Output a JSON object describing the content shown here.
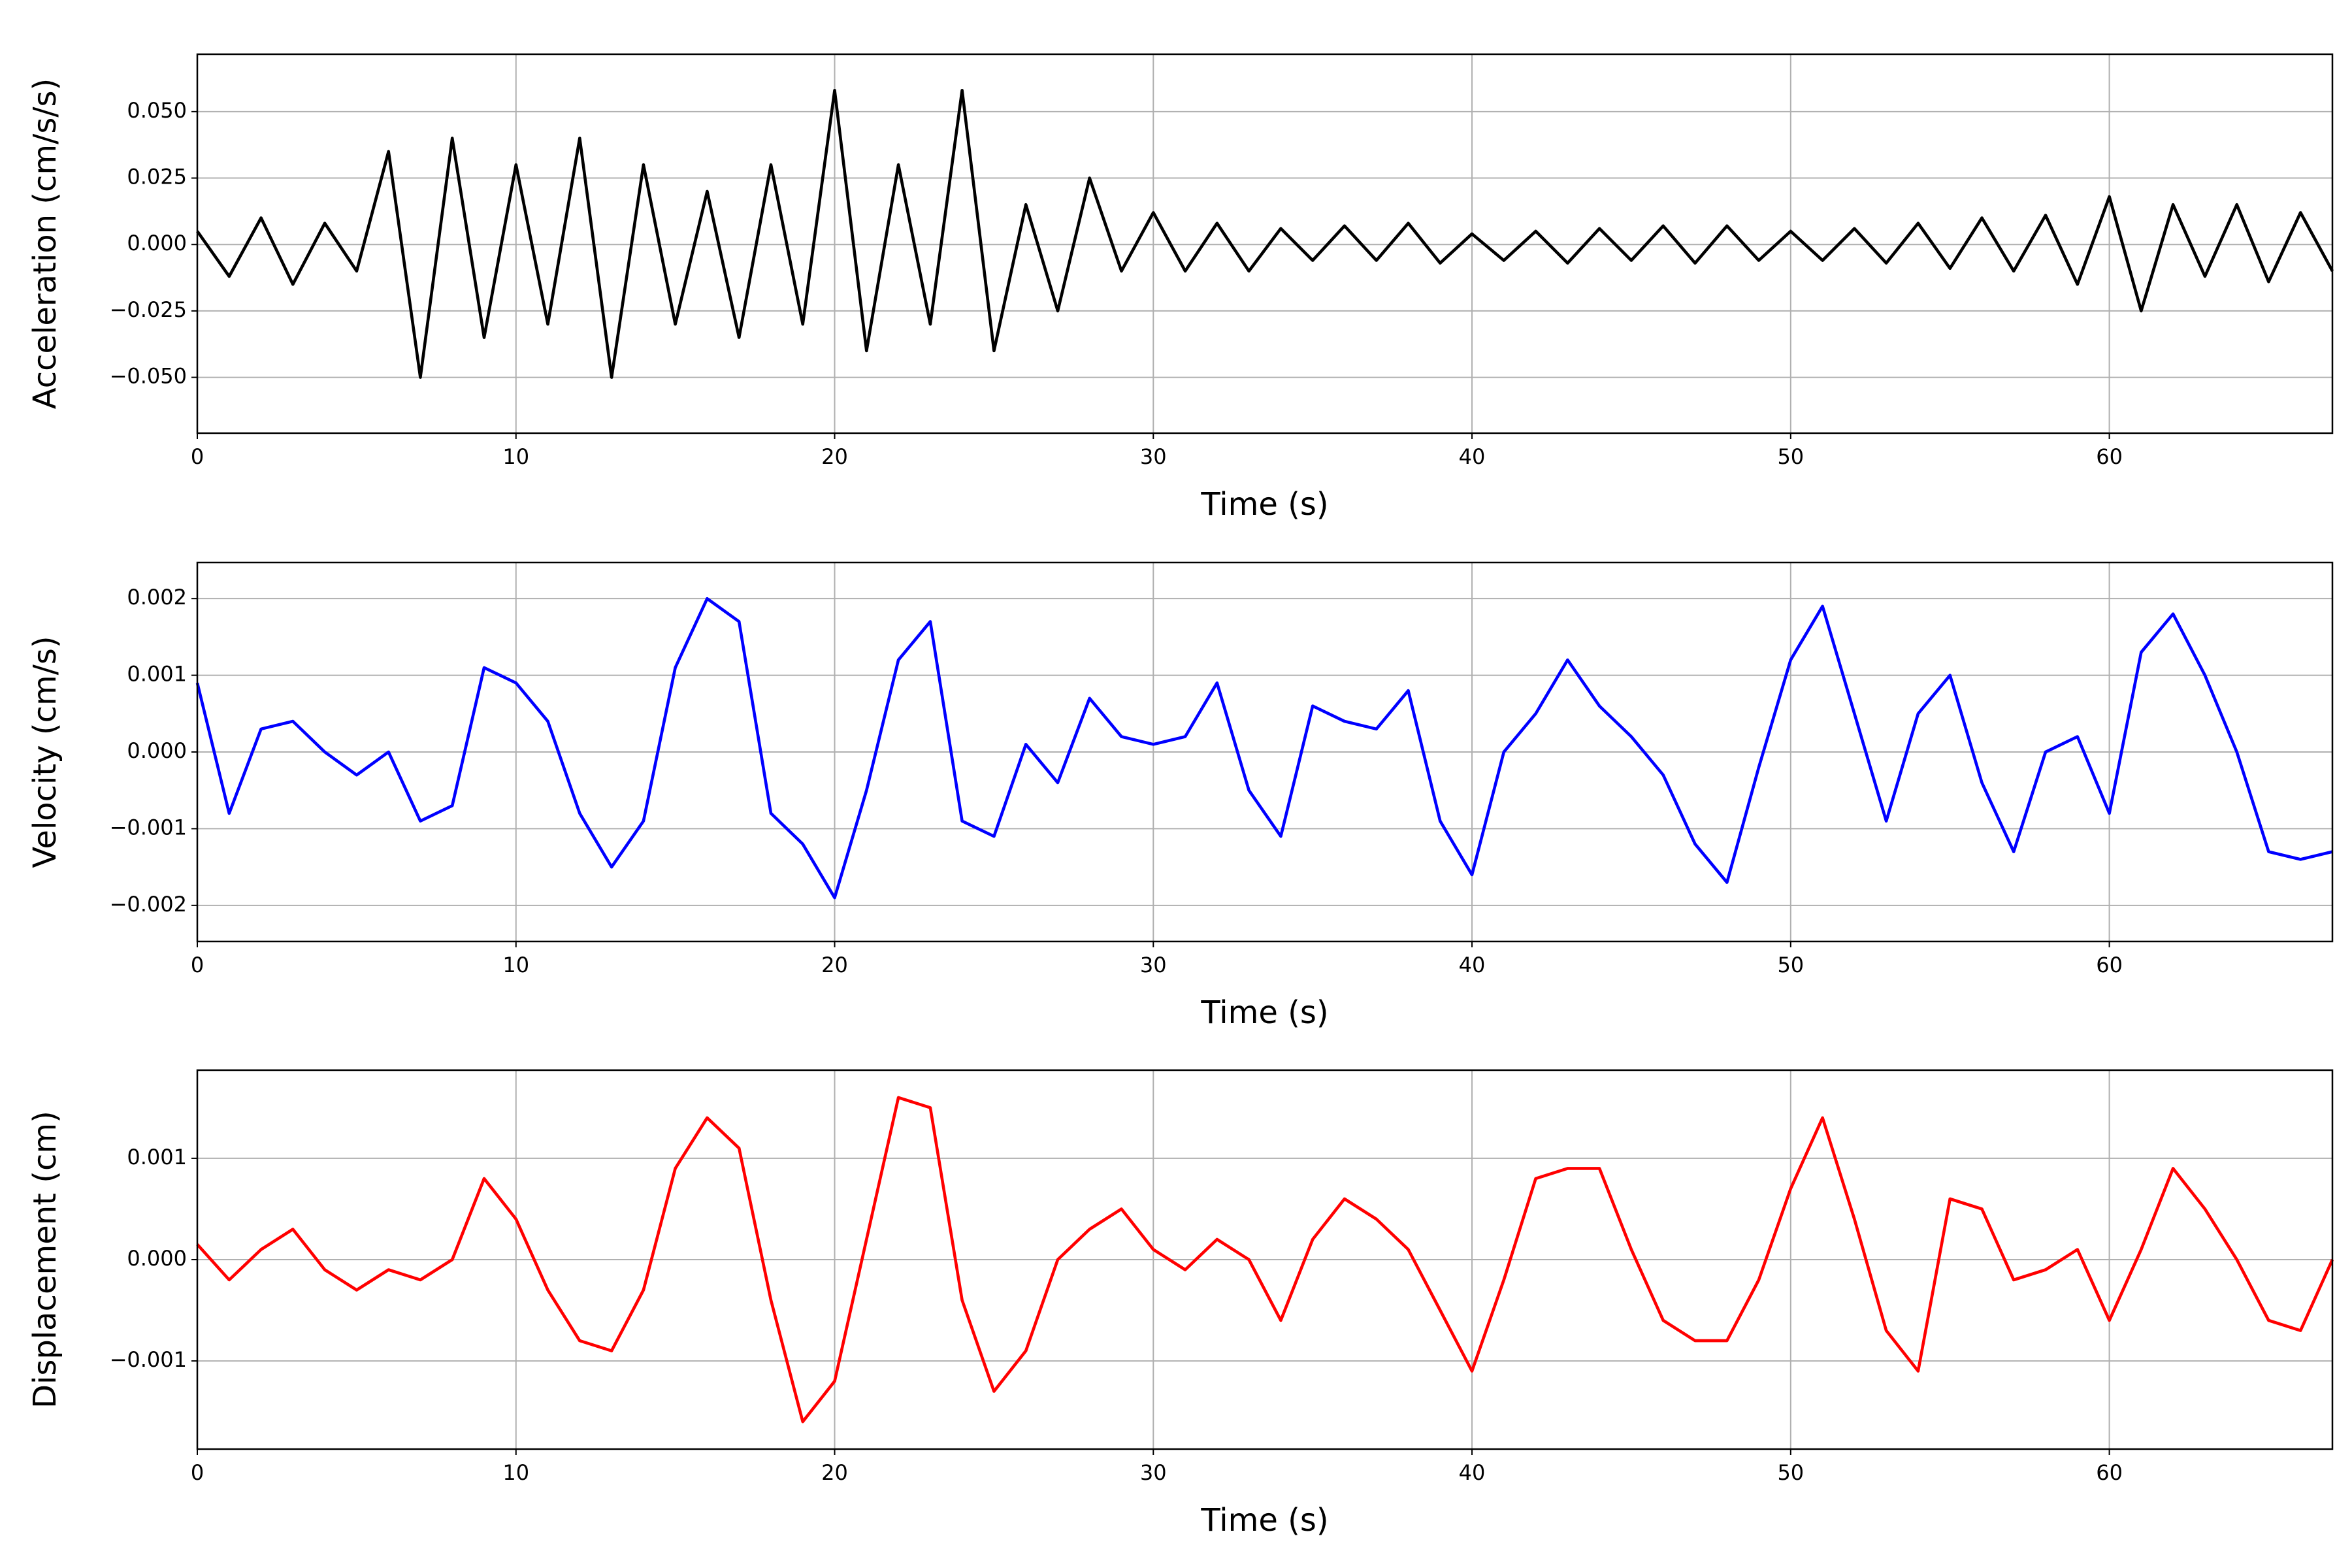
{
  "chart_data": [
    {
      "type": "line",
      "xlabel": "Time (s)",
      "ylabel": "Acceleration (cm/s/s)",
      "grid": true,
      "color": "#000000",
      "xlim": [
        0,
        67
      ],
      "xticks": [
        0,
        10,
        20,
        30,
        40,
        50,
        60
      ],
      "ylim": [
        -0.071,
        0.0716
      ],
      "yticks": [
        {
          "value": -0.05,
          "label": "−0.050"
        },
        {
          "value": -0.025,
          "label": "−0.025"
        },
        {
          "value": 0,
          "label": "0.000"
        },
        {
          "value": 0.025,
          "label": "0.025"
        },
        {
          "value": 0.05,
          "label": "0.050"
        }
      ],
      "x": [
        0,
        1,
        2,
        3,
        4,
        5,
        6,
        7,
        8,
        9,
        10,
        11,
        12,
        13,
        14,
        15,
        16,
        17,
        18,
        19,
        20,
        21,
        22,
        23,
        24,
        25,
        26,
        27,
        28,
        29,
        30,
        31,
        32,
        33,
        34,
        35,
        36,
        37,
        38,
        39,
        40,
        41,
        42,
        43,
        44,
        45,
        46,
        47,
        48,
        49,
        50,
        51,
        52,
        53,
        54,
        55,
        56,
        57,
        58,
        59,
        60,
        61,
        62,
        63,
        64,
        65,
        66,
        67
      ],
      "values": [
        0.005,
        -0.012,
        0.01,
        -0.015,
        0.008,
        -0.01,
        0.035,
        -0.05,
        0.04,
        -0.035,
        0.03,
        -0.03,
        0.04,
        -0.05,
        0.03,
        -0.03,
        0.02,
        -0.035,
        0.03,
        -0.03,
        0.058,
        -0.04,
        0.03,
        -0.03,
        0.058,
        -0.04,
        0.015,
        -0.025,
        0.025,
        -0.01,
        0.012,
        -0.01,
        0.008,
        -0.01,
        0.006,
        -0.006,
        0.007,
        -0.006,
        0.008,
        -0.007,
        0.004,
        -0.006,
        0.005,
        -0.007,
        0.006,
        -0.006,
        0.007,
        -0.007,
        0.007,
        -0.006,
        0.005,
        -0.006,
        0.006,
        -0.007,
        0.008,
        -0.009,
        0.01,
        -0.01,
        0.011,
        -0.015,
        0.018,
        -0.025,
        0.015,
        -0.012,
        0.015,
        -0.014,
        0.012,
        -0.01
      ]
    },
    {
      "type": "line",
      "xlabel": "Time (s)",
      "ylabel": "Velocity (cm/s)",
      "grid": true,
      "color": "#0000ff",
      "xlim": [
        0,
        67
      ],
      "xticks": [
        0,
        10,
        20,
        30,
        40,
        50,
        60
      ],
      "ylim": [
        -0.00247,
        0.00247
      ],
      "yticks": [
        {
          "value": -0.002,
          "label": "−0.002"
        },
        {
          "value": -0.001,
          "label": "−0.001"
        },
        {
          "value": 0,
          "label": "0.000"
        },
        0.001,
        0.002
      ],
      "x": [
        0,
        1,
        2,
        3,
        4,
        5,
        6,
        7,
        8,
        9,
        10,
        11,
        12,
        13,
        14,
        15,
        16,
        17,
        18,
        19,
        20,
        21,
        22,
        23,
        24,
        25,
        26,
        27,
        28,
        29,
        30,
        31,
        32,
        33,
        34,
        35,
        36,
        37,
        38,
        39,
        40,
        41,
        42,
        43,
        44,
        45,
        46,
        47,
        48,
        49,
        50,
        51,
        52,
        53,
        54,
        55,
        56,
        57,
        58,
        59,
        60,
        61,
        62,
        63,
        64,
        65,
        66,
        67
      ],
      "values": [
        0.0009,
        -0.0008,
        0.0003,
        0.0004,
        0.0,
        -0.0003,
        0.0,
        -0.0009,
        -0.0007,
        0.0011,
        0.0009,
        0.0004,
        -0.0008,
        -0.0015,
        -0.0009,
        0.0011,
        0.002,
        0.0017,
        -0.0008,
        -0.0012,
        -0.0019,
        -0.0005,
        0.0012,
        0.0017,
        -0.0009,
        -0.0011,
        0.0001,
        -0.0004,
        0.0007,
        0.0002,
        0.0001,
        0.0002,
        0.0009,
        -0.0005,
        -0.0011,
        0.0006,
        0.0004,
        0.0003,
        0.0008,
        -0.0009,
        -0.0016,
        0.0,
        0.0005,
        0.0012,
        0.0006,
        0.0002,
        -0.0003,
        -0.0012,
        -0.0017,
        -0.0002,
        0.0012,
        0.0019,
        0.0005,
        -0.0009,
        0.0005,
        0.001,
        -0.0004,
        -0.0013,
        0.0,
        0.0002,
        -0.0008,
        0.0013,
        0.0018,
        0.001,
        0.0,
        -0.0013,
        -0.0014,
        -0.0013
      ]
    },
    {
      "type": "line",
      "xlabel": "Time (s)",
      "ylabel": "Displacement (cm)",
      "grid": true,
      "color": "#ff0000",
      "xlim": [
        0,
        67
      ],
      "xticks": [
        0,
        10,
        20,
        30,
        40,
        50,
        60
      ],
      "ylim": [
        -0.00187,
        0.00187
      ],
      "yticks": [
        {
          "value": -0.001,
          "label": "−0.001"
        },
        {
          "value": 0,
          "label": "0.000"
        },
        0.001
      ],
      "x": [
        0,
        1,
        2,
        3,
        4,
        5,
        6,
        7,
        8,
        9,
        10,
        11,
        12,
        13,
        14,
        15,
        16,
        17,
        18,
        19,
        20,
        21,
        22,
        23,
        24,
        25,
        26,
        27,
        28,
        29,
        30,
        31,
        32,
        33,
        34,
        35,
        36,
        37,
        38,
        39,
        40,
        41,
        42,
        43,
        44,
        45,
        46,
        47,
        48,
        49,
        50,
        51,
        52,
        53,
        54,
        55,
        56,
        57,
        58,
        59,
        60,
        61,
        62,
        63,
        64,
        65,
        66,
        67
      ],
      "values": [
        0.00015,
        -0.0002,
        0.0001,
        0.0003,
        -0.0001,
        -0.0003,
        -0.0001,
        -0.0002,
        0.0,
        0.0008,
        0.0004,
        -0.0003,
        -0.0008,
        -0.0009,
        -0.0003,
        0.0009,
        0.0014,
        0.0011,
        -0.0004,
        -0.0016,
        -0.0012,
        0.0002,
        0.0016,
        0.0015,
        -0.0004,
        -0.0013,
        -0.0009,
        0.0,
        0.0003,
        0.0005,
        0.0001,
        -0.0001,
        0.0002,
        0.0,
        -0.0006,
        0.0002,
        0.0006,
        0.0004,
        0.0001,
        -0.0005,
        -0.0011,
        -0.0002,
        0.0008,
        0.0009,
        0.0009,
        0.0001,
        -0.0006,
        -0.0008,
        -0.0008,
        -0.0002,
        0.0007,
        0.0014,
        0.0004,
        -0.0007,
        -0.0011,
        0.0006,
        0.0005,
        -0.0002,
        -0.0001,
        0.0001,
        -0.0006,
        0.0001,
        0.0009,
        0.0005,
        0.0,
        -0.0006,
        -0.0007,
        0.0
      ]
    }
  ]
}
